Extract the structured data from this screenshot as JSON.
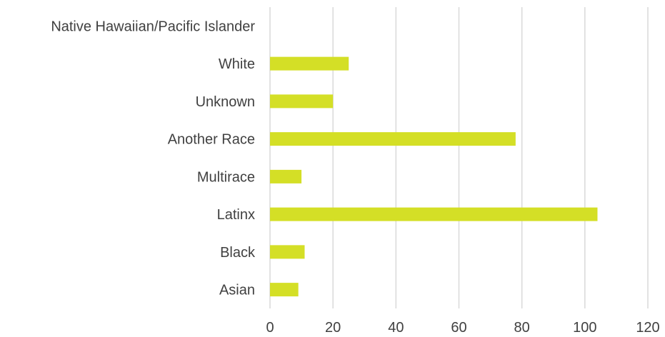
{
  "chart_data": {
    "type": "bar",
    "orientation": "horizontal",
    "categories": [
      "Native Hawaiian/Pacific Islander",
      "White",
      "Unknown",
      "Another Race",
      "Multirace",
      "Latinx",
      "Black",
      "Asian"
    ],
    "values": [
      0,
      25,
      20,
      78,
      10,
      104,
      11,
      9
    ],
    "xlim": [
      0,
      120
    ],
    "xticks": [
      0,
      20,
      40,
      60,
      80,
      100,
      120
    ],
    "xtick_labels": [
      "0",
      "20",
      "40",
      "60",
      "80",
      "100",
      "120"
    ],
    "grid": "vertical",
    "legend": "none",
    "bar_color": "#d4df26",
    "title": "",
    "xlabel": "",
    "ylabel": ""
  }
}
